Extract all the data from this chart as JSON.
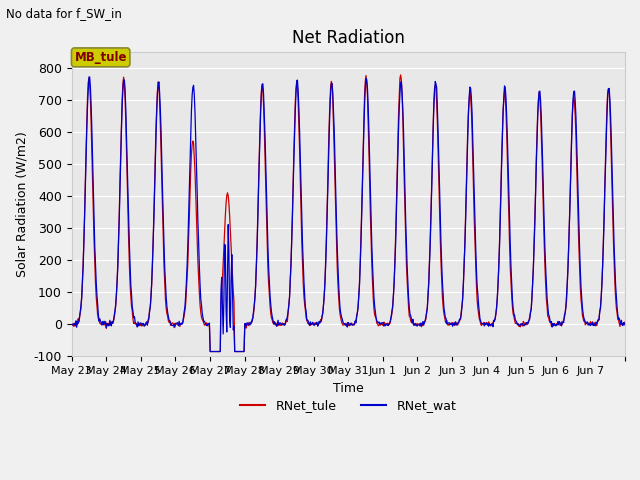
{
  "title": "Net Radiation",
  "subtitle": "No data for f_SW_in",
  "ylabel": "Solar Radiation (W/m2)",
  "xlabel": "Time",
  "ylim": [
    -100,
    850
  ],
  "yticks": [
    -100,
    0,
    100,
    200,
    300,
    400,
    500,
    600,
    700,
    800
  ],
  "legend_label1": "RNet_tule",
  "legend_label2": "RNet_wat",
  "color_tule": "#cc0000",
  "color_wat": "#0000cc",
  "mb_tule_box_color": "#cccc00",
  "mb_tule_text_color": "#800000",
  "plot_bg_color": "#e8e8e8",
  "fig_bg_color": "#f0f0f0",
  "x_tick_labels": [
    "May 23",
    "May 24",
    "May 25",
    "May 26",
    "May 27",
    "May 28",
    "May 29",
    "May 30",
    "May 31",
    "Jun 1",
    "Jun 2",
    "Jun 3",
    "Jun 4",
    "Jun 5",
    "Jun 6",
    "Jun 7"
  ],
  "days": 16,
  "points_per_day": 48,
  "day_peaks_tule": [
    770,
    765,
    750,
    575,
    410,
    745,
    755,
    760,
    770,
    780,
    750,
    730,
    728,
    720,
    710,
    740
  ],
  "day_peaks_wat": [
    770,
    765,
    755,
    745,
    130,
    750,
    760,
    757,
    770,
    762,
    760,
    740,
    740,
    730,
    730,
    740
  ],
  "night_val": -85,
  "figsize": [
    6.4,
    4.8
  ],
  "dpi": 100
}
